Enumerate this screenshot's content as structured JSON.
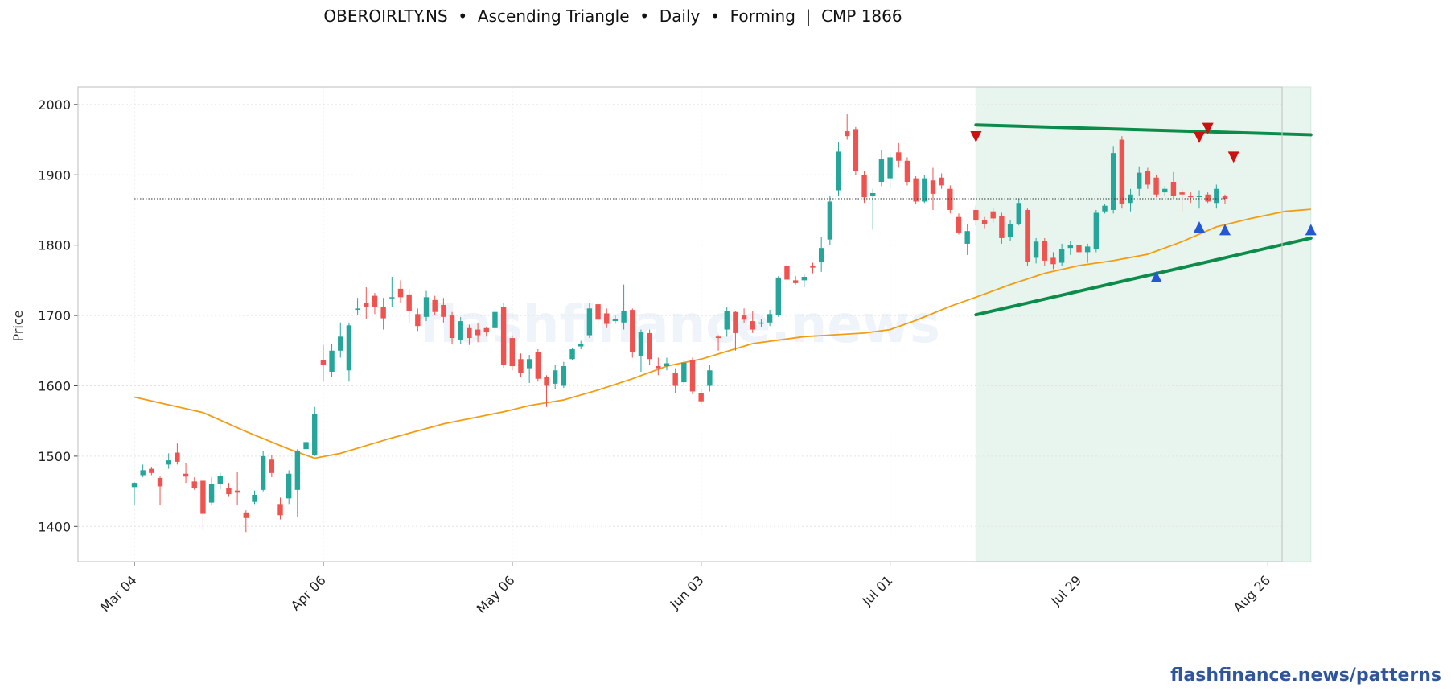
{
  "chart_data": {
    "type": "candlestick",
    "title": "OBEROIRLTY.NS  •  Ascending Triangle  •  Daily  •  Forming  |  CMP 1866",
    "ylabel": "Price",
    "xlabel": "",
    "ylim": [
      1350,
      2025
    ],
    "yticks": [
      1400,
      1500,
      1600,
      1700,
      1800,
      1900,
      2000
    ],
    "xticks": [
      "Mar 04",
      "Apr 06",
      "May 06",
      "Jun 03",
      "Jul 01",
      "Jul 29",
      "Aug 26"
    ],
    "xtick_index": [
      0,
      22,
      44,
      66,
      88,
      110,
      132
    ],
    "grid": true,
    "watermark": "flashfinance.news",
    "cmp": 1866,
    "colors": {
      "up": "#26a69a",
      "down": "#ef5350",
      "ma": "#f39c12",
      "trendline": "#0b8c4a",
      "zone": "#e8f5ee",
      "peak": "#cc1111",
      "trough": "#2457d6"
    },
    "candles": [
      [
        1456,
        1462,
        1430,
        1463
      ],
      [
        1473,
        1480,
        1470,
        1488
      ],
      [
        1482,
        1476,
        1473,
        1485
      ],
      [
        1469,
        1457,
        1430,
        1471
      ],
      [
        1488,
        1494,
        1482,
        1504
      ],
      [
        1505,
        1492,
        1488,
        1518
      ],
      [
        1475,
        1471,
        1462,
        1490
      ],
      [
        1464,
        1455,
        1452,
        1470
      ],
      [
        1465,
        1418,
        1395,
        1467
      ],
      [
        1434,
        1460,
        1430,
        1470
      ],
      [
        1460,
        1472,
        1453,
        1476
      ],
      [
        1455,
        1446,
        1442,
        1462
      ],
      [
        1451,
        1448,
        1430,
        1478
      ],
      [
        1420,
        1412,
        1392,
        1423
      ],
      [
        1435,
        1445,
        1432,
        1451
      ],
      [
        1452,
        1500,
        1450,
        1507
      ],
      [
        1495,
        1476,
        1470,
        1502
      ],
      [
        1432,
        1416,
        1410,
        1441
      ],
      [
        1440,
        1475,
        1432,
        1480
      ],
      [
        1452,
        1508,
        1414,
        1510
      ],
      [
        1510,
        1520,
        1495,
        1528
      ],
      [
        1502,
        1560,
        1500,
        1570
      ],
      [
        1636,
        1630,
        1606,
        1658
      ],
      [
        1620,
        1650,
        1612,
        1660
      ],
      [
        1650,
        1670,
        1640,
        1690
      ],
      [
        1622,
        1686,
        1606,
        1690
      ],
      [
        1708,
        1710,
        1700,
        1725
      ],
      [
        1718,
        1712,
        1695,
        1740
      ],
      [
        1728,
        1712,
        1702,
        1732
      ],
      [
        1712,
        1696,
        1680,
        1725
      ],
      [
        1725,
        1726,
        1712,
        1755
      ],
      [
        1738,
        1726,
        1718,
        1750
      ],
      [
        1730,
        1706,
        1690,
        1738
      ],
      [
        1702,
        1685,
        1678,
        1710
      ],
      [
        1698,
        1726,
        1692,
        1735
      ],
      [
        1722,
        1705,
        1700,
        1728
      ],
      [
        1715,
        1698,
        1690,
        1725
      ],
      [
        1700,
        1668,
        1660,
        1705
      ],
      [
        1665,
        1692,
        1660,
        1698
      ],
      [
        1682,
        1668,
        1658,
        1687
      ],
      [
        1680,
        1672,
        1662,
        1690
      ],
      [
        1682,
        1676,
        1670,
        1684
      ],
      [
        1682,
        1705,
        1675,
        1712
      ],
      [
        1712,
        1630,
        1626,
        1718
      ],
      [
        1668,
        1628,
        1622,
        1672
      ],
      [
        1638,
        1618,
        1612,
        1646
      ],
      [
        1625,
        1638,
        1604,
        1644
      ],
      [
        1648,
        1610,
        1606,
        1652
      ],
      [
        1612,
        1600,
        1570,
        1615
      ],
      [
        1603,
        1622,
        1596,
        1630
      ],
      [
        1600,
        1628,
        1597,
        1634
      ],
      [
        1638,
        1652,
        1636,
        1654
      ],
      [
        1656,
        1660,
        1652,
        1664
      ],
      [
        1672,
        1710,
        1668,
        1718
      ],
      [
        1716,
        1694,
        1686,
        1720
      ],
      [
        1703,
        1688,
        1682,
        1710
      ],
      [
        1692,
        1695,
        1688,
        1700
      ],
      [
        1690,
        1707,
        1680,
        1744
      ],
      [
        1708,
        1648,
        1640,
        1710
      ],
      [
        1642,
        1676,
        1620,
        1680
      ],
      [
        1675,
        1638,
        1630,
        1680
      ],
      [
        1628,
        1625,
        1615,
        1640
      ],
      [
        1628,
        1632,
        1622,
        1640
      ],
      [
        1618,
        1600,
        1590,
        1625
      ],
      [
        1605,
        1633,
        1600,
        1636
      ],
      [
        1637,
        1592,
        1588,
        1640
      ],
      [
        1590,
        1578,
        1574,
        1595
      ],
      [
        1600,
        1622,
        1592,
        1630
      ],
      [
        1670,
        1668,
        1650,
        1672
      ],
      [
        1680,
        1706,
        1670,
        1712
      ],
      [
        1705,
        1675,
        1650,
        1706
      ],
      [
        1700,
        1694,
        1690,
        1710
      ],
      [
        1692,
        1680,
        1675,
        1706
      ],
      [
        1690,
        1690,
        1684,
        1695
      ],
      [
        1690,
        1702,
        1685,
        1708
      ],
      [
        1700,
        1754,
        1698,
        1756
      ],
      [
        1770,
        1751,
        1740,
        1780
      ],
      [
        1750,
        1746,
        1744,
        1756
      ],
      [
        1750,
        1755,
        1740,
        1758
      ],
      [
        1770,
        1768,
        1760,
        1775
      ],
      [
        1776,
        1796,
        1762,
        1812
      ],
      [
        1808,
        1862,
        1800,
        1870
      ],
      [
        1878,
        1933,
        1870,
        1946
      ],
      [
        1962,
        1955,
        1950,
        1986
      ],
      [
        1965,
        1905,
        1900,
        1968
      ],
      [
        1900,
        1868,
        1860,
        1905
      ],
      [
        1870,
        1874,
        1822,
        1880
      ],
      [
        1890,
        1922,
        1884,
        1935
      ],
      [
        1895,
        1925,
        1880,
        1930
      ],
      [
        1932,
        1920,
        1910,
        1945
      ],
      [
        1920,
        1890,
        1885,
        1925
      ],
      [
        1895,
        1862,
        1858,
        1898
      ],
      [
        1862,
        1895,
        1860,
        1900
      ],
      [
        1892,
        1873,
        1850,
        1910
      ],
      [
        1896,
        1885,
        1880,
        1902
      ],
      [
        1880,
        1850,
        1845,
        1885
      ],
      [
        1840,
        1818,
        1815,
        1845
      ],
      [
        1802,
        1820,
        1786,
        1830
      ],
      [
        1850,
        1835,
        1828,
        1856
      ],
      [
        1836,
        1830,
        1824,
        1840
      ],
      [
        1848,
        1838,
        1832,
        1852
      ],
      [
        1842,
        1810,
        1802,
        1846
      ],
      [
        1812,
        1830,
        1806,
        1836
      ],
      [
        1830,
        1860,
        1828,
        1866
      ],
      [
        1850,
        1776,
        1770,
        1852
      ],
      [
        1782,
        1805,
        1774,
        1810
      ],
      [
        1806,
        1778,
        1770,
        1810
      ],
      [
        1782,
        1773,
        1766,
        1790
      ],
      [
        1775,
        1794,
        1770,
        1802
      ],
      [
        1796,
        1800,
        1786,
        1806
      ],
      [
        1800,
        1790,
        1780,
        1803
      ],
      [
        1790,
        1798,
        1775,
        1802
      ],
      [
        1795,
        1846,
        1790,
        1850
      ],
      [
        1848,
        1856,
        1845,
        1858
      ],
      [
        1850,
        1931,
        1845,
        1940
      ],
      [
        1950,
        1858,
        1852,
        1955
      ],
      [
        1860,
        1872,
        1848,
        1880
      ],
      [
        1880,
        1903,
        1870,
        1912
      ],
      [
        1905,
        1886,
        1880,
        1910
      ],
      [
        1896,
        1872,
        1868,
        1900
      ],
      [
        1875,
        1880,
        1870,
        1884
      ],
      [
        1890,
        1870,
        1866,
        1904
      ],
      [
        1875,
        1872,
        1848,
        1880
      ],
      [
        1870,
        1868,
        1860,
        1875
      ],
      [
        1870,
        1870,
        1852,
        1878
      ],
      [
        1872,
        1862,
        1860,
        1875
      ],
      [
        1860,
        1880,
        1852,
        1886
      ],
      [
        1870,
        1866,
        1858,
        1872
      ]
    ],
    "moving_average": [
      [
        0,
        1584
      ],
      [
        8,
        1562
      ],
      [
        13,
        1535
      ],
      [
        18,
        1510
      ],
      [
        21,
        1497
      ],
      [
        24,
        1504
      ],
      [
        30,
        1526
      ],
      [
        36,
        1546
      ],
      [
        43,
        1563
      ],
      [
        46,
        1572
      ],
      [
        50,
        1580
      ],
      [
        54,
        1594
      ],
      [
        58,
        1610
      ],
      [
        62,
        1628
      ],
      [
        66,
        1638
      ],
      [
        72,
        1660
      ],
      [
        78,
        1670
      ],
      [
        85,
        1675
      ],
      [
        88,
        1680
      ],
      [
        91,
        1693
      ],
      [
        95,
        1713
      ],
      [
        98,
        1726
      ],
      [
        102,
        1744
      ],
      [
        106,
        1760
      ],
      [
        110,
        1771
      ],
      [
        114,
        1778
      ],
      [
        118,
        1787
      ],
      [
        122,
        1805
      ],
      [
        126,
        1826
      ],
      [
        130,
        1838
      ],
      [
        134,
        1848
      ],
      [
        137,
        1851
      ]
    ],
    "resistance_line": [
      [
        98,
        1971
      ],
      [
        137,
        1957
      ]
    ],
    "support_line": [
      [
        98,
        1701
      ],
      [
        137,
        1810
      ]
    ],
    "cmp_line_start": 0,
    "pattern_zone": [
      98,
      137
    ],
    "peaks": [
      [
        98,
        1954
      ],
      [
        124,
        1953
      ],
      [
        125,
        1966
      ],
      [
        128,
        1925
      ]
    ],
    "troughs": [
      [
        119,
        1755
      ],
      [
        124,
        1826
      ],
      [
        127,
        1822
      ],
      [
        137,
        1822
      ]
    ]
  },
  "branding": {
    "footer": "flashfinance.news/patterns"
  }
}
